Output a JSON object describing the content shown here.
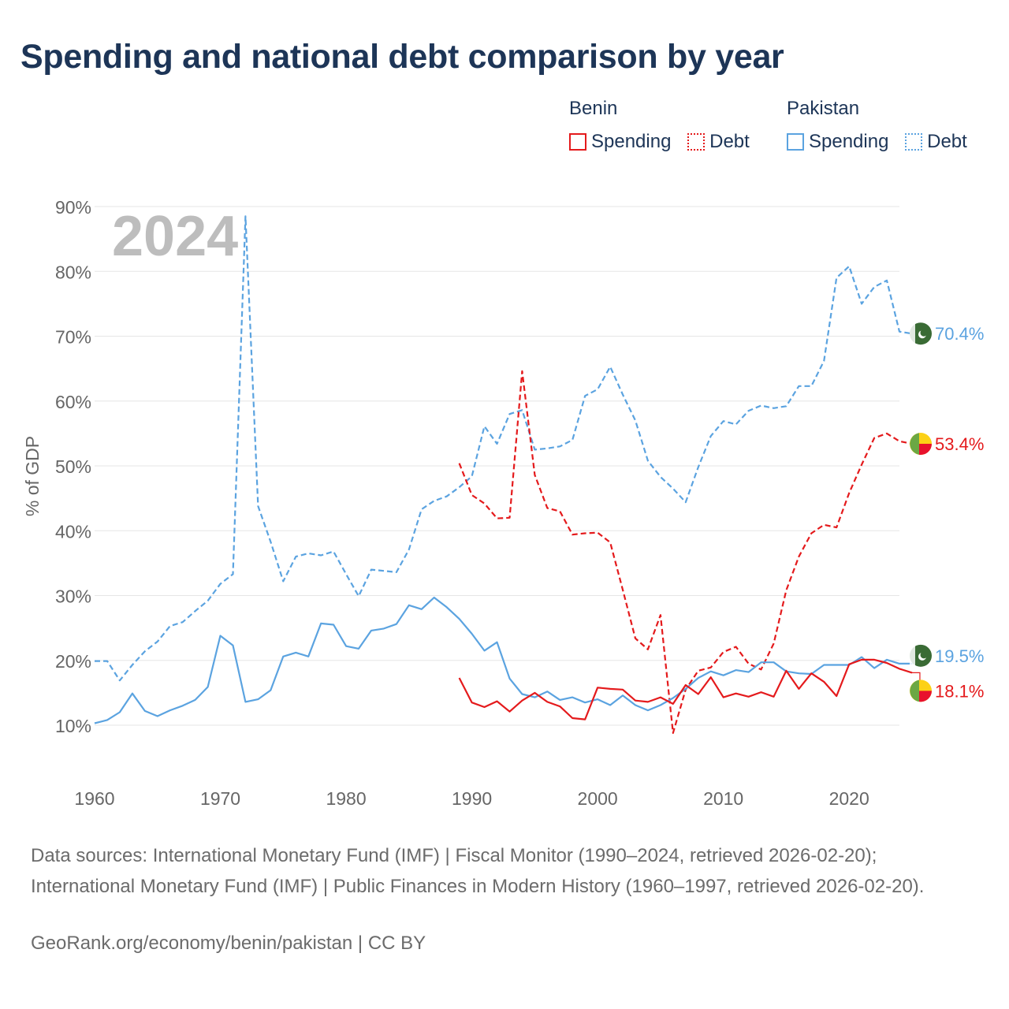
{
  "title": "Spending and national debt comparison by year",
  "legend": [
    {
      "country": "Benin",
      "color": "#e41a1c",
      "items": [
        "Spending",
        "Debt"
      ]
    },
    {
      "country": "Pakistan",
      "color": "#5ba3e0",
      "items": [
        "Spending",
        "Debt"
      ]
    }
  ],
  "footer": {
    "sources": "Data sources: International Monetary Fund (IMF) | Fiscal Monitor (1990–2024, retrieved 2026-02-20); International Monetary Fund (IMF) | Public Finances in Modern History (1960–1997, retrieved 2026-02-20).",
    "credit": "GeoRank.org/economy/benin/pakistan | CC BY"
  },
  "chart_data": {
    "type": "line",
    "year_label": "2024",
    "ylabel": "% of GDP",
    "xlim": [
      1960,
      2024
    ],
    "ylim": [
      0,
      90
    ],
    "xticks": [
      1960,
      1970,
      1980,
      1990,
      2000,
      2010,
      2020
    ],
    "yticks": [
      10,
      20,
      30,
      40,
      50,
      60,
      70,
      80,
      90
    ],
    "ytick_labels": [
      "10%",
      "20%",
      "30%",
      "40%",
      "50%",
      "60%",
      "70%",
      "80%",
      "90%"
    ],
    "series": [
      {
        "name": "Pakistan Debt",
        "country": "Pakistan",
        "metric": "Debt",
        "color": "#5ba3e0",
        "dashed": true,
        "start_year": 1960,
        "values": [
          19.9,
          19.9,
          16.9,
          19.3,
          21.4,
          22.9,
          25.3,
          25.9,
          27.6,
          29.2,
          31.8,
          33.3,
          88.5,
          43.8,
          38.3,
          32.2,
          36,
          36.5,
          36.2,
          36.8,
          33.3,
          29.9,
          34,
          33.8,
          33.6,
          37.1,
          43.3,
          44.6,
          45.3,
          46.7,
          48.4,
          56.1,
          53.4,
          58,
          58.6,
          52.5,
          52.7,
          53,
          54,
          60.8,
          61.8,
          65.3,
          61,
          57,
          50.8,
          48.3,
          46.5,
          44.4,
          49.8,
          54.6,
          56.9,
          56.4,
          58.5,
          59.3,
          58.9,
          59.2,
          62.3,
          62.3,
          66.2,
          79,
          80.8,
          75,
          77.6,
          78.6,
          70.7,
          70.4
        ],
        "end_label": "70.4%"
      },
      {
        "name": "Benin Debt",
        "country": "Benin",
        "metric": "Debt",
        "color": "#e41a1c",
        "dashed": true,
        "start_year": 1989,
        "values": [
          50.4,
          45.5,
          44.2,
          41.9,
          42,
          64.6,
          48.6,
          43.5,
          43,
          39.4,
          39.6,
          39.7,
          38.2,
          30.9,
          23.4,
          21.7,
          27,
          8.8,
          15.5,
          18.4,
          18.9,
          21.3,
          22.1,
          19.5,
          18.6,
          22.6,
          30.8,
          36,
          39.6,
          40.9,
          40.5,
          45.8,
          50.2,
          54.3,
          55,
          53.8,
          53.4
        ],
        "end_label": "53.4%"
      },
      {
        "name": "Pakistan Spending",
        "country": "Pakistan",
        "metric": "Spending",
        "color": "#5ba3e0",
        "dashed": false,
        "start_year": 1960,
        "values": [
          10.3,
          10.8,
          12,
          14.9,
          12.2,
          11.4,
          12.3,
          13,
          13.9,
          15.9,
          23.8,
          22.3,
          13.6,
          14,
          15.4,
          20.6,
          21.2,
          20.6,
          25.7,
          25.5,
          22.2,
          21.8,
          24.6,
          24.9,
          25.6,
          28.5,
          27.9,
          29.7,
          28.2,
          26.4,
          24.1,
          21.5,
          22.8,
          17.2,
          14.8,
          14.3,
          15.2,
          13.9,
          14.3,
          13.5,
          14,
          13.1,
          14.6,
          13.1,
          12.3,
          13.1,
          14.2,
          15.6,
          17.3,
          18.3,
          17.7,
          18.5,
          18.2,
          19.7,
          19.7,
          18.3,
          18,
          17.9,
          19.3,
          19.3,
          19.3,
          20.5,
          18.8,
          20.1,
          19.5,
          19.5
        ],
        "end_label": "19.5%"
      },
      {
        "name": "Benin Spending",
        "country": "Benin",
        "metric": "Spending",
        "color": "#e41a1c",
        "dashed": false,
        "start_year": 1989,
        "values": [
          17.3,
          13.5,
          12.8,
          13.7,
          12.1,
          13.8,
          15,
          13.6,
          12.9,
          11.1,
          10.9,
          15.8,
          15.6,
          15.5,
          13.8,
          13.6,
          14.3,
          13.3,
          16.2,
          14.8,
          17.4,
          14.3,
          14.9,
          14.4,
          15.1,
          14.4,
          18.4,
          15.6,
          18,
          16.7,
          14.5,
          19.4,
          20.1,
          20.1,
          19.6,
          18.7,
          18.1
        ],
        "end_label": "18.1%"
      }
    ]
  }
}
